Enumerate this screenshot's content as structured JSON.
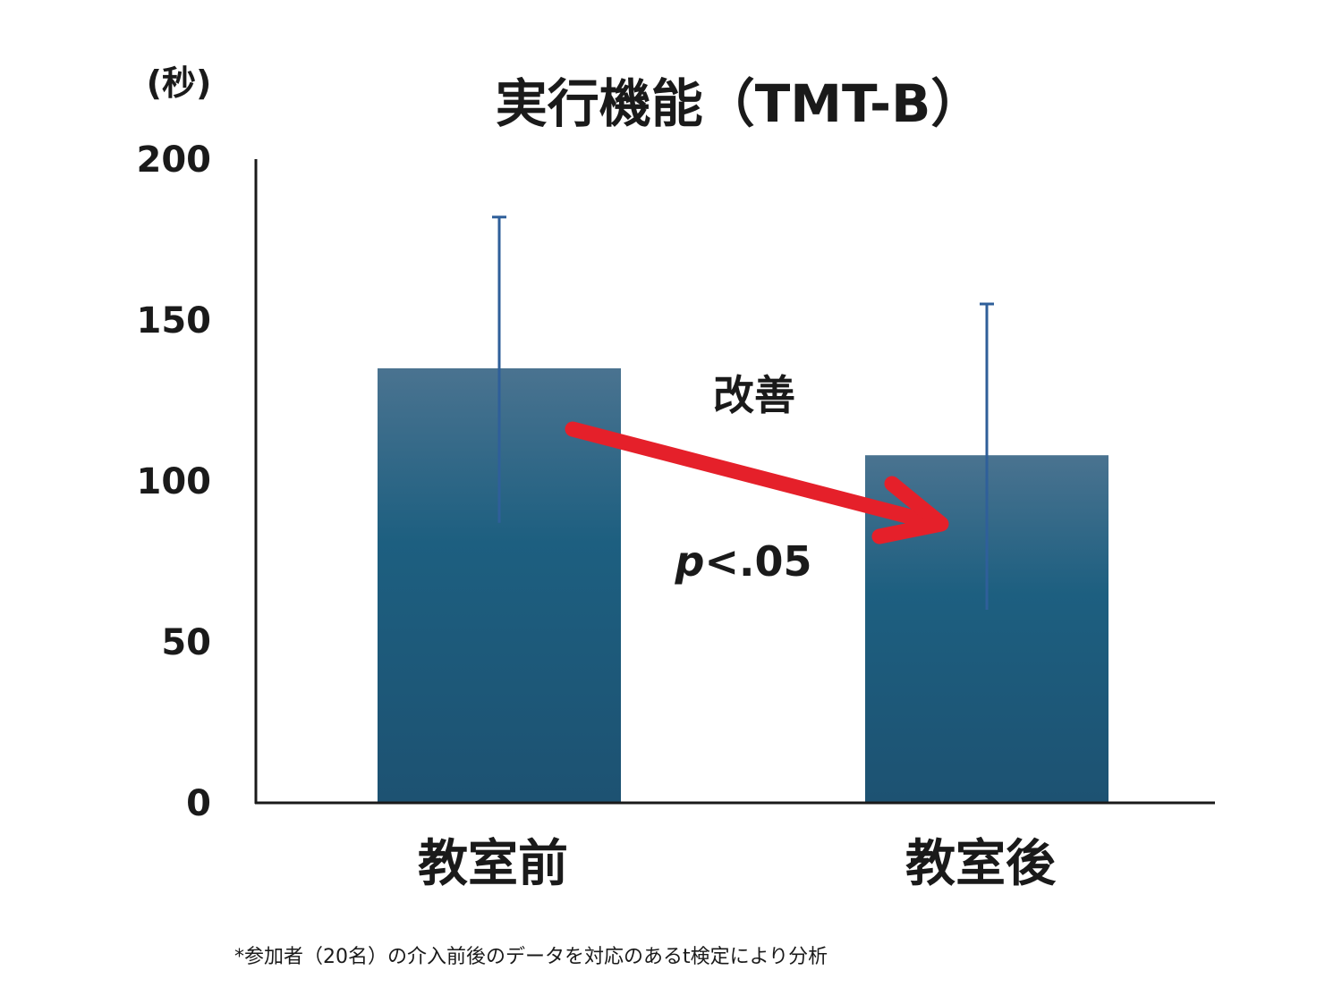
{
  "chart_data": {
    "type": "bar",
    "title": "実行機能（TMT-B）",
    "ylabel": "(秒)",
    "categories": [
      "教室前",
      "教室後"
    ],
    "series": [
      {
        "values": [
          135,
          108
        ],
        "error_upper": [
          182,
          155
        ],
        "error_lower": [
          87,
          60
        ]
      }
    ],
    "ylim": [
      0,
      200
    ],
    "yticks": [
      "0",
      "50",
      "100",
      "150",
      "200"
    ],
    "grid": false,
    "annotations": {
      "label": "改善",
      "p_italic": "p",
      "p_rest": "<.05"
    },
    "colors": {
      "bar_top": "#4a7390",
      "bar_bottom": "#1d5272",
      "error_bar": "#2f5f9a",
      "arrow": "#e5202a",
      "axis": "#1a1a1a"
    }
  },
  "footnote": "*参加者（20名）の介入前後のデータを対応のあるt検定により分析"
}
